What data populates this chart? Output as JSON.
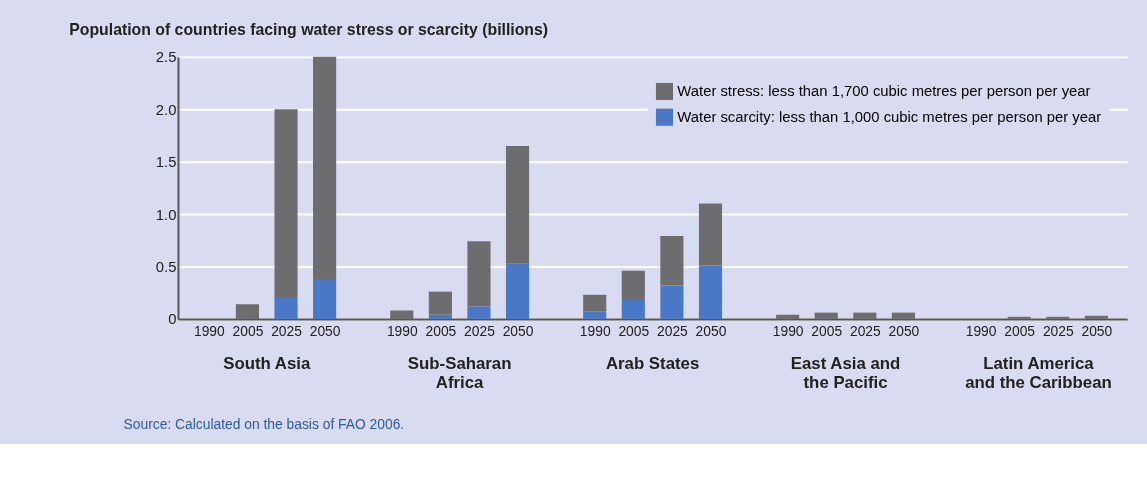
{
  "chart_data": {
    "type": "bar",
    "stacked": true,
    "ylabel": "Population of countries facing water stress or scarcity (billions)",
    "categories": [
      "1990",
      "2005",
      "2025",
      "2050",
      "1990",
      "2005",
      "2025",
      "2050",
      "1990",
      "2005",
      "2025",
      "2050",
      "1990",
      "2005",
      "2025",
      "2050",
      "1990",
      "2005",
      "2025",
      "2050"
    ],
    "series": [
      {
        "name": "Water scarcity: less than 1,000 cubic metres per person per year",
        "color": "#4a78c6",
        "values": [
          0,
          0,
          0.2,
          0.38,
          0,
          0.04,
          0.12,
          0.53,
          0.07,
          0.19,
          0.32,
          0.51,
          0,
          0,
          0,
          0,
          0,
          0,
          0,
          0
        ]
      },
      {
        "name": "Water stress: less than 1,700 cubic metres per person per year",
        "color": "#6d6d70",
        "values": [
          0,
          0.14,
          1.8,
          2.12,
          0.08,
          0.22,
          0.62,
          1.12,
          0.16,
          0.27,
          0.47,
          0.59,
          0.04,
          0.06,
          0.06,
          0.06,
          0,
          0.02,
          0.02,
          0.03
        ]
      }
    ],
    "ylim": [
      0,
      2.5
    ],
    "yticks": [
      0,
      0.5,
      {
        "value": 1,
        "label": "1.0"
      },
      1.5,
      {
        "value": 2,
        "label": "2.0"
      },
      2.5
    ],
    "grid": "y",
    "legend": "top right",
    "annotations": [
      "South Asia",
      "Sub-Saharan Africa",
      "Arab States",
      "East Asia and the Pacific",
      "Latin America and the Caribbean",
      "Source: Calculated on the basis of FAO 2006."
    ]
  }
}
